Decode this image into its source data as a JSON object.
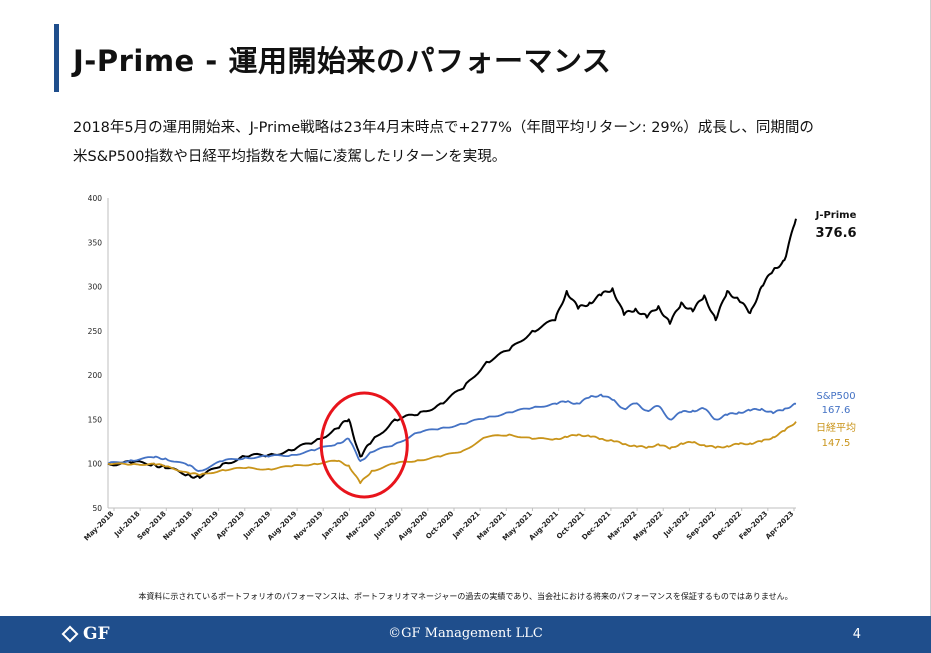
{
  "slide": {
    "title": "J-Prime - 運用開始来のパフォーマンス",
    "description_line1": "2018年5月の運用開始来、J-Prime戦略は23年4月末時点で+277%（年間平均リターン: 29%）成長し、同期間の",
    "description_line2": "米S&P500指数や日経平均指数を大幅に凌駕したリターンを実現。",
    "disclaimer": "本資料に示されているポートフォリオのパフォーマンスは、ポートフォリオマネージャーの過去の実績であり、当会社における将来のパフォーマンスを保証するものではありません。",
    "footer": {
      "logo_text": "GF",
      "copyright": "©GF Management LLC",
      "page_number": "4",
      "color": "#1f4e8c"
    }
  },
  "chart_data": {
    "type": "line",
    "ylim": [
      50,
      400
    ],
    "yticks": [
      50,
      100,
      150,
      200,
      250,
      300,
      350,
      400
    ],
    "grid": false,
    "x_tick_labels": [
      "May-2018",
      "Jul-2018",
      "Sep-2018",
      "Nov-2018",
      "Jan-2019",
      "Apr-2019",
      "Jun-2019",
      "Aug-2019",
      "Nov-2019",
      "Jan-2020",
      "Mar-2020",
      "Jun-2020",
      "Aug-2020",
      "Oct-2020",
      "Jan-2021",
      "Mar-2021",
      "May-2021",
      "Aug-2021",
      "Oct-2021",
      "Dec-2021",
      "Mar-2022",
      "May-2022",
      "Jul-2022",
      "Sep-2022",
      "Dec-2022",
      "Feb-2023",
      "Apr-2023"
    ],
    "x": [
      "2018-05",
      "2018-07",
      "2018-09",
      "2018-10",
      "2018-12",
      "2019-01",
      "2019-03",
      "2019-05",
      "2019-07",
      "2019-09",
      "2019-11",
      "2020-01",
      "2020-02",
      "2020-03",
      "2020-04",
      "2020-06",
      "2020-08",
      "2020-10",
      "2020-12",
      "2021-02",
      "2021-04",
      "2021-06",
      "2021-08",
      "2021-09",
      "2021-10",
      "2021-11",
      "2021-12",
      "2022-01",
      "2022-02",
      "2022-03",
      "2022-04",
      "2022-05",
      "2022-06",
      "2022-07",
      "2022-08",
      "2022-09",
      "2022-10",
      "2022-11",
      "2022-12",
      "2023-01",
      "2023-02",
      "2023-03",
      "2023-04",
      "2023-05"
    ],
    "series": [
      {
        "name": "J-Prime",
        "color": "#000000",
        "values": [
          100,
          101,
          100,
          95,
          88,
          84,
          100,
          108,
          110,
          115,
          125,
          140,
          150,
          108,
          125,
          150,
          155,
          168,
          185,
          215,
          228,
          250,
          262,
          295,
          275,
          282,
          290,
          298,
          268,
          275,
          265,
          278,
          258,
          282,
          272,
          290,
          262,
          295,
          285,
          270,
          300,
          318,
          330,
          376.6
        ]
      },
      {
        "name": "S&P500",
        "color": "#4472c4",
        "values": [
          100,
          104,
          107,
          106,
          98,
          92,
          103,
          107,
          108,
          110,
          115,
          123,
          128,
          103,
          113,
          122,
          135,
          140,
          145,
          152,
          158,
          163,
          168,
          170,
          168,
          175,
          178,
          172,
          162,
          168,
          160,
          165,
          150,
          158,
          160,
          162,
          150,
          155,
          158,
          160,
          162,
          157,
          162,
          167.6
        ]
      },
      {
        "name": "日経平均",
        "color": "#c9941a",
        "values": [
          100,
          99,
          100,
          97,
          90,
          87,
          93,
          95,
          94,
          97,
          100,
          103,
          98,
          78,
          92,
          100,
          104,
          108,
          115,
          130,
          133,
          128,
          128,
          130,
          133,
          131,
          128,
          126,
          122,
          120,
          118,
          122,
          117,
          123,
          124,
          121,
          118,
          120,
          122,
          123,
          125,
          130,
          137,
          147.5
        ]
      }
    ],
    "end_labels": [
      {
        "name": "J-Prime",
        "value": "376.6"
      },
      {
        "name": "S&P500",
        "value": "167.6"
      },
      {
        "name": "日経平均",
        "value": "147.5"
      }
    ]
  }
}
